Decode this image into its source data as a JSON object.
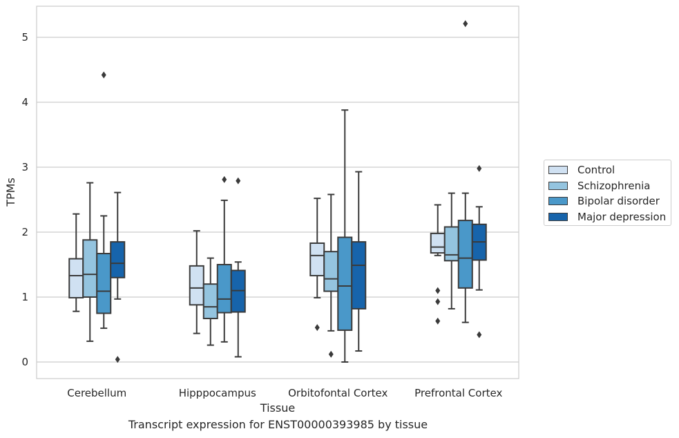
{
  "caption": "Transcript expression for ENST00000393985 by tissue",
  "chart_data": {
    "type": "box",
    "xlabel": "Tissue",
    "ylabel": "TPMs",
    "ylim": [
      -0.25,
      5.5
    ],
    "yticks": [
      0,
      1,
      2,
      3,
      4,
      5
    ],
    "grid": true,
    "legend_position": "right",
    "categories": [
      "Cerebellum",
      "Hipppocampus",
      "Orbitofontal Cortex",
      "Prefrontal Cortex"
    ],
    "series": [
      {
        "name": "Control",
        "color": "#d0e1f2",
        "boxes": [
          {
            "whisker_low": 0.78,
            "q1": 0.99,
            "median": 1.33,
            "q3": 1.59,
            "whisker_high": 2.28,
            "outliers": []
          },
          {
            "whisker_low": 0.44,
            "q1": 0.88,
            "median": 1.14,
            "q3": 1.48,
            "whisker_high": 2.02,
            "outliers": []
          },
          {
            "whisker_low": 0.99,
            "q1": 1.33,
            "median": 1.64,
            "q3": 1.83,
            "whisker_high": 2.52,
            "outliers": [
              0.53
            ]
          },
          {
            "whisker_low": 1.64,
            "q1": 1.68,
            "median": 1.77,
            "q3": 1.98,
            "whisker_high": 2.42,
            "outliers": [
              1.1,
              0.93,
              0.63
            ]
          }
        ]
      },
      {
        "name": "Schizophrenia",
        "color": "#94c4df",
        "boxes": [
          {
            "whisker_low": 0.32,
            "q1": 1.0,
            "median": 1.35,
            "q3": 1.88,
            "whisker_high": 2.76,
            "outliers": []
          },
          {
            "whisker_low": 0.26,
            "q1": 0.67,
            "median": 0.85,
            "q3": 1.2,
            "whisker_high": 1.6,
            "outliers": []
          },
          {
            "whisker_low": 0.48,
            "q1": 1.09,
            "median": 1.28,
            "q3": 1.7,
            "whisker_high": 2.58,
            "outliers": [
              0.12
            ]
          },
          {
            "whisker_low": 0.82,
            "q1": 1.56,
            "median": 1.65,
            "q3": 2.08,
            "whisker_high": 2.6,
            "outliers": []
          }
        ]
      },
      {
        "name": "Bipolar disorder",
        "color": "#4a98c9",
        "boxes": [
          {
            "whisker_low": 0.52,
            "q1": 0.75,
            "median": 1.09,
            "q3": 1.67,
            "whisker_high": 2.25,
            "outliers": [
              4.42
            ]
          },
          {
            "whisker_low": 0.31,
            "q1": 0.76,
            "median": 0.97,
            "q3": 1.5,
            "whisker_high": 2.49,
            "outliers": [
              2.81
            ]
          },
          {
            "whisker_low": 0.0,
            "q1": 0.49,
            "median": 1.17,
            "q3": 1.92,
            "whisker_high": 3.88,
            "outliers": []
          },
          {
            "whisker_low": 0.61,
            "q1": 1.14,
            "median": 1.6,
            "q3": 2.18,
            "whisker_high": 2.6,
            "outliers": [
              5.21
            ]
          }
        ]
      },
      {
        "name": "Major depression",
        "color": "#1764ab",
        "boxes": [
          {
            "whisker_low": 0.97,
            "q1": 1.3,
            "median": 1.52,
            "q3": 1.85,
            "whisker_high": 2.61,
            "outliers": [
              0.04
            ]
          },
          {
            "whisker_low": 0.08,
            "q1": 0.77,
            "median": 1.1,
            "q3": 1.41,
            "whisker_high": 1.54,
            "outliers": [
              2.79
            ]
          },
          {
            "whisker_low": 0.17,
            "q1": 0.82,
            "median": 1.49,
            "q3": 1.85,
            "whisker_high": 2.93,
            "outliers": []
          },
          {
            "whisker_low": 1.11,
            "q1": 1.57,
            "median": 1.85,
            "q3": 2.12,
            "whisker_high": 2.39,
            "outliers": [
              2.98,
              0.42
            ]
          }
        ]
      }
    ]
  }
}
